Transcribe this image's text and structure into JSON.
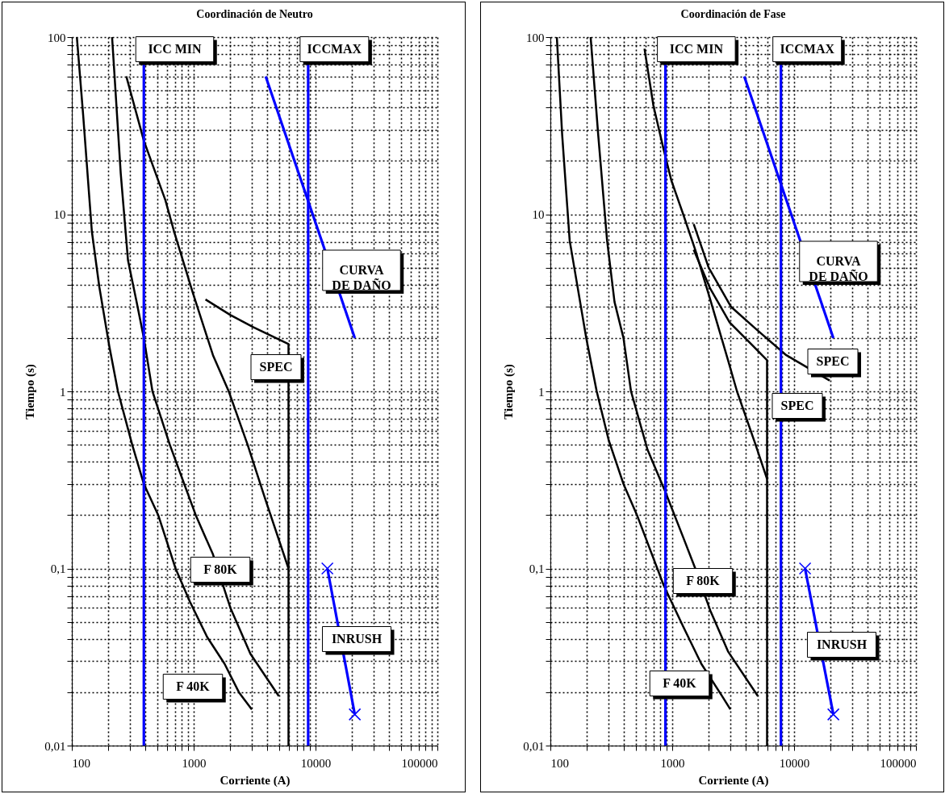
{
  "chart_data": [
    {
      "type": "line",
      "title": "Coordinación de Neutro",
      "xlabel": "Corriente (A)",
      "ylabel": "Tiempo (s)",
      "log": "xy",
      "grid": true,
      "line_style": "solid",
      "xlim": [
        100,
        100000
      ],
      "ylim": [
        0.01,
        100
      ],
      "xticks": [
        100,
        {
          "value": 200,
          "label": null
        },
        {
          "value": 300,
          "label": null
        },
        {
          "value": 400,
          "label": null
        },
        {
          "value": 500,
          "label": null
        },
        {
          "value": 600,
          "label": null
        },
        {
          "value": 700,
          "label": null
        },
        {
          "value": 800,
          "label": null
        },
        {
          "value": 900,
          "label": null
        },
        1000,
        {
          "value": 2000,
          "label": null
        },
        {
          "value": 3000,
          "label": null
        },
        {
          "value": 4000,
          "label": null
        },
        {
          "value": 5000,
          "label": null
        },
        {
          "value": 6000,
          "label": null
        },
        {
          "value": 7000,
          "label": null
        },
        {
          "value": 8000,
          "label": null
        },
        {
          "value": 9000,
          "label": null
        },
        10000,
        {
          "value": 20000,
          "label": null
        },
        {
          "value": 30000,
          "label": null
        },
        {
          "value": 40000,
          "label": null
        },
        {
          "value": 50000,
          "label": null
        },
        {
          "value": 60000,
          "label": null
        },
        {
          "value": 70000,
          "label": null
        },
        {
          "value": 80000,
          "label": null
        },
        {
          "value": 90000,
          "label": null
        },
        100000
      ],
      "yticks": [
        {
          "value": 0.01,
          "label": "0,01"
        },
        {
          "value": 0.02,
          "label": null
        },
        {
          "value": 0.03,
          "label": null
        },
        {
          "value": 0.04,
          "label": null
        },
        {
          "value": 0.05,
          "label": null
        },
        {
          "value": 0.06,
          "label": null
        },
        {
          "value": 0.07,
          "label": null
        },
        {
          "value": 0.08,
          "label": null
        },
        {
          "value": 0.09,
          "label": null
        },
        {
          "value": 0.1,
          "label": "0,1"
        },
        {
          "value": 0.2,
          "label": null
        },
        {
          "value": 0.3,
          "label": null
        },
        {
          "value": 0.4,
          "label": null
        },
        {
          "value": 0.5,
          "label": null
        },
        {
          "value": 0.6,
          "label": null
        },
        {
          "value": 0.7,
          "label": null
        },
        {
          "value": 0.8,
          "label": null
        },
        {
          "value": 0.9,
          "label": null
        },
        1,
        {
          "value": 2,
          "label": null
        },
        {
          "value": 3,
          "label": null
        },
        {
          "value": 4,
          "label": null
        },
        {
          "value": 5,
          "label": null
        },
        {
          "value": 6,
          "label": null
        },
        {
          "value": 7,
          "label": null
        },
        {
          "value": 8,
          "label": null
        },
        {
          "value": 9,
          "label": null
        },
        10,
        {
          "value": 20,
          "label": null
        },
        {
          "value": 30,
          "label": null
        },
        {
          "value": 40,
          "label": null
        },
        {
          "value": 50,
          "label": null
        },
        {
          "value": 60,
          "label": null
        },
        {
          "value": 70,
          "label": null
        },
        {
          "value": 80,
          "label": null
        },
        {
          "value": 90,
          "label": null
        },
        100
      ],
      "ref_lines": [
        {
          "axis": "x",
          "value": 390,
          "label": "ICC MIN",
          "color": "#0000ff"
        },
        {
          "axis": "x",
          "value": 8700,
          "label": "ICCMAX",
          "color": "#0000ff"
        }
      ],
      "series": [
        {
          "name": "F 40K",
          "color": "#000000",
          "x": [
            110,
            124,
            146,
            168,
            203,
            239,
            313,
            390,
            512,
            710,
            930,
            1290,
            1790,
            2350,
            3000
          ],
          "values": [
            100,
            36,
            8,
            3.9,
            1.8,
            1,
            0.5,
            0.3,
            0.2,
            0.1,
            0.065,
            0.041,
            0.029,
            0.02,
            0.016
          ]
        },
        {
          "name": "F 80K",
          "color": "#000000",
          "x": [
            214,
            252,
            289,
            340,
            390,
            459,
            637,
            836,
            1040,
            1440,
            2000,
            2920,
            5000
          ],
          "values": [
            100,
            17,
            5.5,
            3.2,
            2,
            1,
            0.5,
            0.3,
            0.2,
            0.12,
            0.06,
            0.033,
            0.019
          ]
        },
        {
          "color": "#000000",
          "x": [
            280,
            390,
            586,
            690,
            984,
            1440,
            1940,
            2770,
            3840,
            6000
          ],
          "values": [
            60,
            26,
            12,
            8,
            3.6,
            1.6,
            1,
            0.5,
            0.25,
            0.1
          ]
        },
        {
          "name": "SPEC",
          "color": "#000000",
          "x": [
            1250,
            2000,
            3100,
            6000,
            6000
          ],
          "values": [
            3.3,
            2.7,
            2.3,
            1.85,
            0.01
          ]
        },
        {
          "name": "CURVA DE DAÑO",
          "color": "#0000ff",
          "x": [
            3900,
            21000
          ],
          "values": [
            60,
            2
          ]
        },
        {
          "name": "INRUSH",
          "color": "#0000ff",
          "marker": "cross",
          "x": [
            12500,
            21000
          ],
          "values": [
            0.1,
            0.015
          ]
        }
      ]
    },
    {
      "type": "line",
      "title": "Coordinación de Fase",
      "xlabel": "Corriente (A)",
      "ylabel": "Tiempo (s)",
      "log": "xy",
      "grid": true,
      "line_style": "solid",
      "xlim": [
        100,
        100000
      ],
      "ylim": [
        0.01,
        100
      ],
      "xticks": [
        100,
        {
          "value": 200,
          "label": null
        },
        {
          "value": 300,
          "label": null
        },
        {
          "value": 400,
          "label": null
        },
        {
          "value": 500,
          "label": null
        },
        {
          "value": 600,
          "label": null
        },
        {
          "value": 700,
          "label": null
        },
        {
          "value": 800,
          "label": null
        },
        {
          "value": 900,
          "label": null
        },
        1000,
        {
          "value": 2000,
          "label": null
        },
        {
          "value": 3000,
          "label": null
        },
        {
          "value": 4000,
          "label": null
        },
        {
          "value": 5000,
          "label": null
        },
        {
          "value": 6000,
          "label": null
        },
        {
          "value": 7000,
          "label": null
        },
        {
          "value": 8000,
          "label": null
        },
        {
          "value": 9000,
          "label": null
        },
        10000,
        {
          "value": 20000,
          "label": null
        },
        {
          "value": 30000,
          "label": null
        },
        {
          "value": 40000,
          "label": null
        },
        {
          "value": 50000,
          "label": null
        },
        {
          "value": 60000,
          "label": null
        },
        {
          "value": 70000,
          "label": null
        },
        {
          "value": 80000,
          "label": null
        },
        {
          "value": 90000,
          "label": null
        },
        100000
      ],
      "yticks": [
        {
          "value": 0.01,
          "label": "0,01"
        },
        {
          "value": 0.02,
          "label": null
        },
        {
          "value": 0.03,
          "label": null
        },
        {
          "value": 0.04,
          "label": null
        },
        {
          "value": 0.05,
          "label": null
        },
        {
          "value": 0.06,
          "label": null
        },
        {
          "value": 0.07,
          "label": null
        },
        {
          "value": 0.08,
          "label": null
        },
        {
          "value": 0.09,
          "label": null
        },
        {
          "value": 0.1,
          "label": "0,1"
        },
        {
          "value": 0.2,
          "label": null
        },
        {
          "value": 0.3,
          "label": null
        },
        {
          "value": 0.4,
          "label": null
        },
        {
          "value": 0.5,
          "label": null
        },
        {
          "value": 0.6,
          "label": null
        },
        {
          "value": 0.7,
          "label": null
        },
        {
          "value": 0.8,
          "label": null
        },
        {
          "value": 0.9,
          "label": null
        },
        1,
        {
          "value": 2,
          "label": null
        },
        {
          "value": 3,
          "label": null
        },
        {
          "value": 4,
          "label": null
        },
        {
          "value": 5,
          "label": null
        },
        {
          "value": 6,
          "label": null
        },
        {
          "value": 7,
          "label": null
        },
        {
          "value": 8,
          "label": null
        },
        {
          "value": 9,
          "label": null
        },
        10,
        {
          "value": 20,
          "label": null
        },
        {
          "value": 30,
          "label": null
        },
        {
          "value": 40,
          "label": null
        },
        {
          "value": 50,
          "label": null
        },
        {
          "value": 60,
          "label": null
        },
        {
          "value": 70,
          "label": null
        },
        {
          "value": 80,
          "label": null
        },
        {
          "value": 90,
          "label": null
        },
        100
      ],
      "ref_lines": [
        {
          "axis": "x",
          "value": 880,
          "label": "ICC MIN",
          "color": "#0000ff"
        },
        {
          "axis": "x",
          "value": 7800,
          "label": "ICCMAX",
          "color": "#0000ff"
        }
      ],
      "series": [
        {
          "name": "F 40K",
          "color": "#000000",
          "x": [
            113,
            125,
            144,
            166,
            197,
            240,
            301,
            398,
            514,
            853,
            1230,
            1730,
            2570,
            3000
          ],
          "values": [
            100,
            28,
            7.1,
            4,
            2,
            1,
            0.53,
            0.3,
            0.2,
            0.08,
            0.047,
            0.029,
            0.019,
            0.016
          ]
        },
        {
          "name": "F 80K",
          "color": "#000000",
          "x": [
            214,
            247,
            292,
            336,
            398,
            459,
            626,
            879,
            1230,
            1545,
            2050,
            2870,
            5050
          ],
          "values": [
            100,
            28,
            7.1,
            3.2,
            2,
            1,
            0.47,
            0.27,
            0.15,
            0.1,
            0.058,
            0.034,
            0.019
          ]
        },
        {
          "color": "#000000",
          "x": [
            592,
            701,
            853,
            984,
            1230,
            1545,
            2050,
            2870,
            3400,
            4780,
            6000
          ],
          "values": [
            86,
            41,
            23,
            15.5,
            10,
            6.3,
            3.3,
            1.5,
            1,
            0.51,
            0.32
          ]
        },
        {
          "name": "SPEC",
          "color": "#000000",
          "x": [
            1500,
            1990,
            3040,
            5050,
            8630,
            19600
          ],
          "values": [
            8.8,
            5,
            3,
            2.2,
            1.6,
            1.15
          ]
        },
        {
          "name": "SPEC",
          "color": "#000000",
          "x": [
            1500,
            2050,
            2960,
            4510,
            6000,
            6000
          ],
          "values": [
            6.3,
            3.8,
            2.45,
            1.83,
            1.5,
            0.01
          ]
        },
        {
          "name": "CURVA DE DAÑO",
          "color": "#0000ff",
          "x": [
            3900,
            21000
          ],
          "values": [
            60,
            2
          ]
        },
        {
          "name": "INRUSH",
          "color": "#0000ff",
          "marker": "cross",
          "x": [
            12300,
            21000
          ],
          "values": [
            0.1,
            0.015
          ]
        }
      ]
    }
  ]
}
